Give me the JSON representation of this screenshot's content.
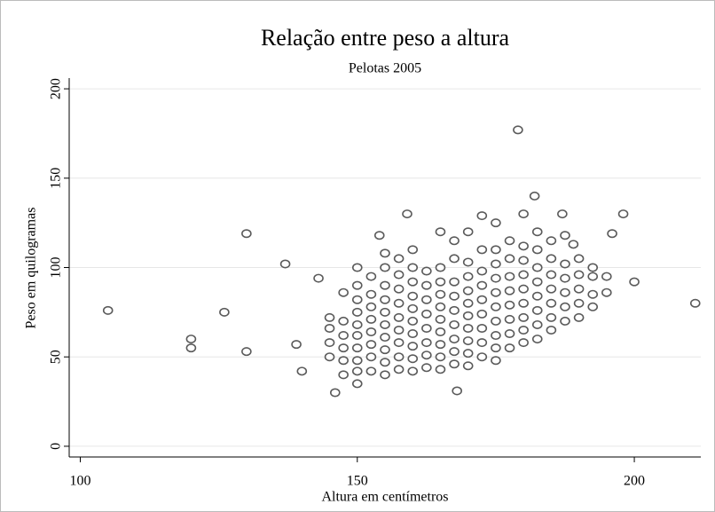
{
  "chart_data": {
    "type": "scatter",
    "title": "Relação entre peso a altura",
    "subtitle": "Pelotas 2005",
    "x_label": "Altura em centímetros",
    "y_label": "Peso em quilogramas",
    "xlim": [
      98,
      212
    ],
    "ylim": [
      -6,
      206
    ],
    "xticks": [
      100,
      150,
      200
    ],
    "yticks": [
      0,
      50,
      100,
      150,
      200
    ],
    "grid": true,
    "series": [
      {
        "color": "#5a5a5a",
        "x": [
          105,
          120,
          120,
          126,
          130,
          130,
          137,
          143,
          146,
          168,
          179,
          182,
          198,
          200,
          211,
          196,
          189,
          187,
          159,
          154,
          140,
          139,
          145,
          145,
          145,
          145,
          147.5,
          147.5,
          147.5,
          147.5,
          147.5,
          147.5,
          150,
          150,
          150,
          150,
          150,
          150,
          150,
          150,
          150,
          150,
          152.5,
          152.5,
          152.5,
          152.5,
          152.5,
          152.5,
          152.5,
          152.5,
          155,
          155,
          155,
          155,
          155,
          155,
          155,
          155,
          155,
          155,
          157.5,
          157.5,
          157.5,
          157.5,
          157.5,
          157.5,
          157.5,
          157.5,
          157.5,
          160,
          160,
          160,
          160,
          160,
          160,
          160,
          160,
          160,
          160,
          162.5,
          162.5,
          162.5,
          162.5,
          162.5,
          162.5,
          162.5,
          162.5,
          165,
          165,
          165,
          165,
          165,
          165,
          165,
          165,
          165,
          165,
          167.5,
          167.5,
          167.5,
          167.5,
          167.5,
          167.5,
          167.5,
          167.5,
          167.5,
          170,
          170,
          170,
          170,
          170,
          170,
          170,
          170,
          170,
          170,
          172.5,
          172.5,
          172.5,
          172.5,
          172.5,
          172.5,
          172.5,
          172.5,
          172.5,
          175,
          175,
          175,
          175,
          175,
          175,
          175,
          175,
          175,
          175,
          177.5,
          177.5,
          177.5,
          177.5,
          177.5,
          177.5,
          177.5,
          177.5,
          180,
          180,
          180,
          180,
          180,
          180,
          180,
          180,
          180,
          182.5,
          182.5,
          182.5,
          182.5,
          182.5,
          182.5,
          182.5,
          182.5,
          185,
          185,
          185,
          185,
          185,
          185,
          185,
          187.5,
          187.5,
          187.5,
          187.5,
          187.5,
          187.5,
          190,
          190,
          190,
          190,
          190,
          192.5,
          192.5,
          192.5,
          192.5,
          195,
          195
        ],
        "y": [
          76,
          60,
          55,
          75,
          119,
          53,
          102,
          94,
          30,
          31,
          177,
          140,
          130,
          92,
          80,
          119,
          113,
          130,
          130,
          118,
          42,
          57,
          50,
          58,
          66,
          72,
          40,
          48,
          55,
          62,
          70,
          86,
          35,
          42,
          48,
          55,
          62,
          68,
          75,
          82,
          90,
          100,
          42,
          50,
          57,
          64,
          71,
          78,
          85,
          95,
          40,
          47,
          54,
          61,
          68,
          75,
          82,
          90,
          100,
          108,
          43,
          50,
          58,
          65,
          72,
          80,
          88,
          96,
          105,
          42,
          49,
          56,
          63,
          70,
          77,
          84,
          92,
          100,
          110,
          44,
          51,
          58,
          66,
          74,
          82,
          90,
          98,
          43,
          50,
          57,
          64,
          71,
          78,
          85,
          92,
          100,
          120,
          46,
          53,
          60,
          68,
          76,
          84,
          92,
          105,
          115,
          45,
          52,
          59,
          66,
          73,
          80,
          87,
          95,
          103,
          120,
          50,
          58,
          66,
          74,
          82,
          90,
          98,
          110,
          129,
          48,
          55,
          62,
          70,
          78,
          86,
          94,
          102,
          110,
          125,
          55,
          63,
          71,
          79,
          87,
          95,
          105,
          115,
          58,
          65,
          72,
          80,
          88,
          96,
          104,
          112,
          130,
          60,
          68,
          76,
          84,
          92,
          100,
          110,
          120,
          65,
          72,
          80,
          88,
          96,
          105,
          115,
          70,
          78,
          86,
          94,
          102,
          118,
          72,
          80,
          88,
          96,
          105,
          78,
          85,
          95,
          100,
          86,
          95
        ]
      }
    ]
  }
}
